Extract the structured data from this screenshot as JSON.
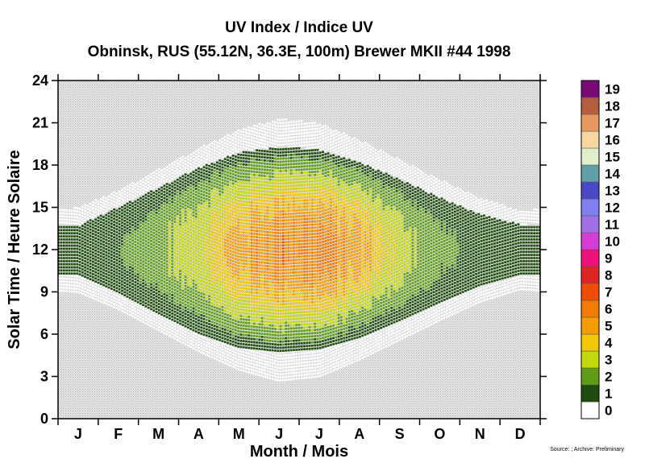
{
  "chart_data": {
    "type": "heatmap",
    "title": "UV Index / Indice UV",
    "subtitle": "Obninsk, RUS (55.12N, 36.3E, 100m) Brewer MKII #44 1998",
    "xlabel": "Month / Mois",
    "ylabel": "Solar Time / Heure Solaire",
    "source": "Source: ; Archive: Preliminary",
    "x_categories": [
      "J",
      "F",
      "M",
      "A",
      "M",
      "J",
      "J",
      "A",
      "S",
      "O",
      "N",
      "D"
    ],
    "y_ticks": [
      0,
      3,
      6,
      9,
      12,
      15,
      18,
      21,
      24
    ],
    "ylim": [
      0,
      24
    ],
    "grid": false,
    "legend": {
      "placement": "right",
      "levels": [
        {
          "value": "0",
          "color": "#ffffff"
        },
        {
          "value": "1",
          "color": "#1d4d0c"
        },
        {
          "value": "2",
          "color": "#5e9e14"
        },
        {
          "value": "3",
          "color": "#c5d80c"
        },
        {
          "value": "4",
          "color": "#f2c800"
        },
        {
          "value": "5",
          "color": "#f79c00"
        },
        {
          "value": "6",
          "color": "#f57a00"
        },
        {
          "value": "7",
          "color": "#f04c00"
        },
        {
          "value": "8",
          "color": "#e02424"
        },
        {
          "value": "9",
          "color": "#f0107a"
        },
        {
          "value": "10",
          "color": "#d83cd8"
        },
        {
          "value": "11",
          "color": "#a070e8"
        },
        {
          "value": "12",
          "color": "#8080f0"
        },
        {
          "value": "13",
          "color": "#4848c8"
        },
        {
          "value": "14",
          "color": "#60a0a8"
        },
        {
          "value": "15",
          "color": "#e0f0c8"
        },
        {
          "value": "16",
          "color": "#f8d8a0"
        },
        {
          "value": "17",
          "color": "#e89860"
        },
        {
          "value": "18",
          "color": "#b85c40"
        },
        {
          "value": "19",
          "color": "#780a78"
        }
      ]
    },
    "daily_envelope": {
      "sunrise_hours_by_month": [
        9.0,
        7.8,
        6.3,
        4.8,
        3.5,
        2.7,
        3.0,
        4.2,
        5.6,
        7.0,
        8.3,
        9.2
      ],
      "sunset_hours_by_month": [
        15.0,
        16.2,
        17.7,
        19.2,
        20.5,
        21.3,
        21.0,
        19.8,
        18.4,
        17.0,
        15.7,
        14.8
      ],
      "measured_start_by_month": [
        10.3,
        9.0,
        7.5,
        6.1,
        5.1,
        4.8,
        5.0,
        5.8,
        7.0,
        8.3,
        9.5,
        10.3
      ],
      "measured_end_by_month": [
        13.7,
        15.0,
        16.4,
        17.8,
        18.9,
        19.3,
        19.1,
        18.2,
        17.0,
        15.7,
        14.5,
        13.8
      ],
      "peak_uv_by_month": [
        0.6,
        1.0,
        2.0,
        3.3,
        4.8,
        6.0,
        6.0,
        4.8,
        3.0,
        1.5,
        0.7,
        0.5
      ]
    }
  }
}
